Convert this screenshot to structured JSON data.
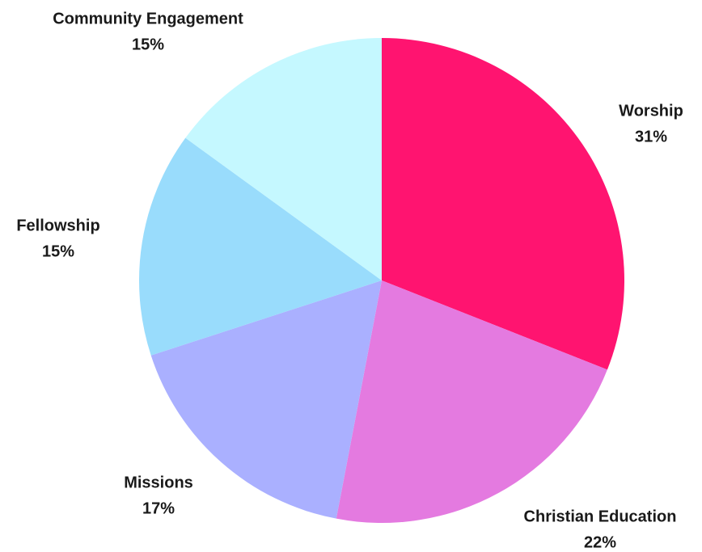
{
  "chart_data": {
    "type": "pie",
    "title": "",
    "series": [
      {
        "values": [
          {
            "label": "Worship",
            "value": 31,
            "display": "31%",
            "color": "#ff1470"
          },
          {
            "label": "Christian Education",
            "value": 22,
            "display": "22%",
            "color": "#e47ae0"
          },
          {
            "label": "Missions",
            "value": 17,
            "display": "17%",
            "color": "#aab0ff"
          },
          {
            "label": "Fellowship",
            "value": 15,
            "display": "15%",
            "color": "#99dcfc"
          },
          {
            "label": "Community Engagement",
            "value": 15,
            "display": "15%",
            "color": "#c5f8ff"
          }
        ]
      }
    ],
    "start_angle": "12 o'clock",
    "direction": "clockwise",
    "legend": "none",
    "labels": "outside"
  }
}
